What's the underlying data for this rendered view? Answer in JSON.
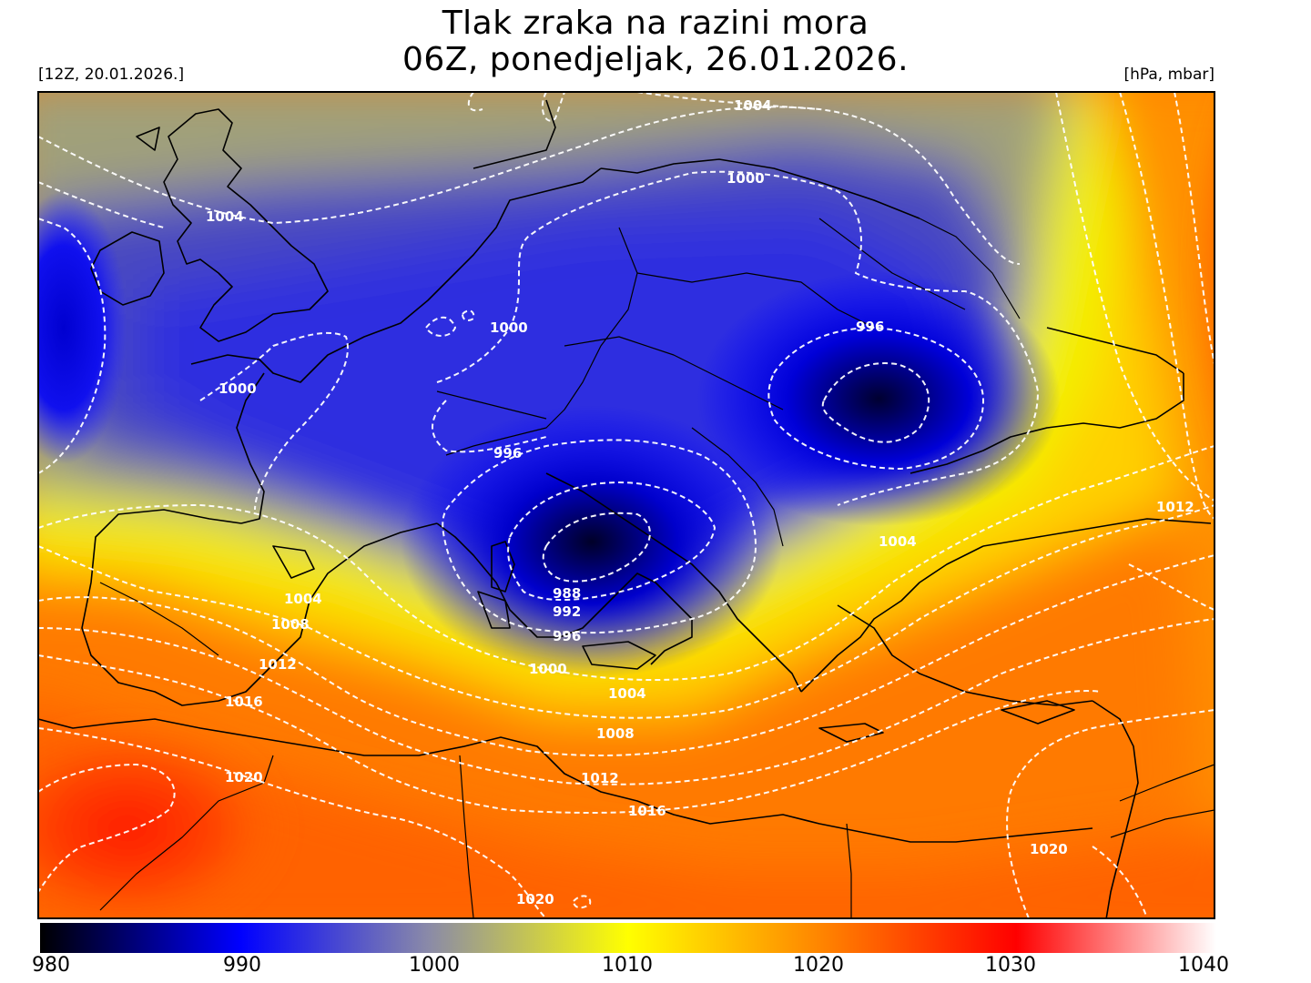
{
  "header": {
    "title_line1": "Tlak zraka na razini mora",
    "title_line2": "06Z, ponedjeljak, 26.01.2026.",
    "run_label": "[12Z, 20.01.2026.]",
    "unit_label": "[hPa, mbar]"
  },
  "colorbar": {
    "ticks": [
      "980",
      "990",
      "1000",
      "1010",
      "1020",
      "1030",
      "1040"
    ],
    "colors": [
      "#000000",
      "#0000ff",
      "#8a8aa8",
      "#ffff00",
      "#ff8000",
      "#ff0000",
      "#ffffff"
    ]
  },
  "map": {
    "pressure_min": 980,
    "pressure_max": 1040,
    "isobar_color": "#ffffff",
    "coast_color": "#000000",
    "isobar_labels": [
      {
        "text": "1004",
        "value": 1004
      },
      {
        "text": "1000",
        "value": 1000
      },
      {
        "text": "1004",
        "value": 1004
      },
      {
        "text": "1000",
        "value": 1000
      },
      {
        "text": "1000",
        "value": 1000
      },
      {
        "text": "996",
        "value": 996
      },
      {
        "text": "996",
        "value": 996
      },
      {
        "text": "1012",
        "value": 1012
      },
      {
        "text": "1004",
        "value": 1004
      },
      {
        "text": "988",
        "value": 988
      },
      {
        "text": "992",
        "value": 992
      },
      {
        "text": "996",
        "value": 996
      },
      {
        "text": "1004",
        "value": 1004
      },
      {
        "text": "1008",
        "value": 1008
      },
      {
        "text": "1012",
        "value": 1012
      },
      {
        "text": "1016",
        "value": 1016
      },
      {
        "text": "1000",
        "value": 1000
      },
      {
        "text": "1004",
        "value": 1004
      },
      {
        "text": "1008",
        "value": 1008
      },
      {
        "text": "1012",
        "value": 1012
      },
      {
        "text": "1016",
        "value": 1016
      },
      {
        "text": "1020",
        "value": 1020
      },
      {
        "text": "1020",
        "value": 1020
      },
      {
        "text": "1020",
        "value": 1020
      }
    ]
  }
}
